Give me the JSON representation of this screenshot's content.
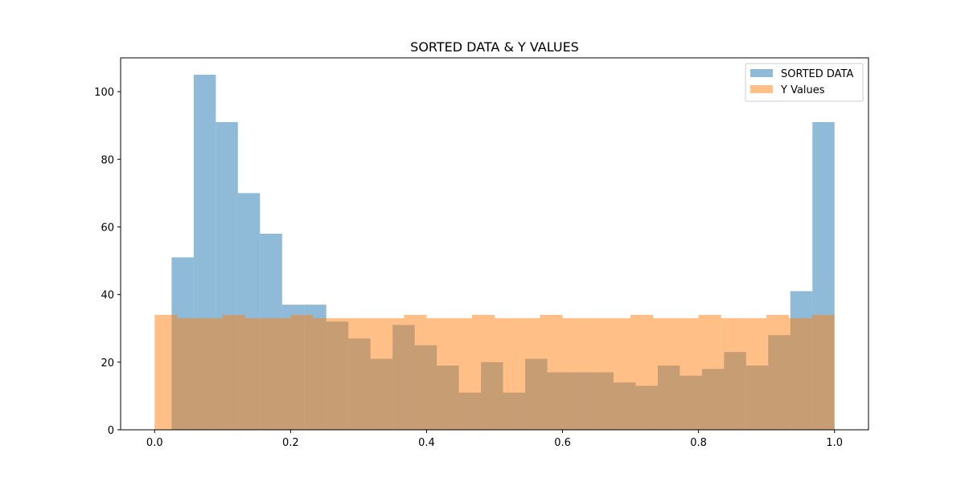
{
  "chart_data": {
    "type": "bar",
    "title": "SORTED DATA & Y VALUES",
    "xlabel": "",
    "ylabel": "",
    "xlim": [
      -0.05,
      1.05
    ],
    "ylim": [
      0,
      110
    ],
    "xticks": [
      0.0,
      0.2,
      0.4,
      0.6,
      0.8,
      1.0
    ],
    "xtick_labels": [
      "0.0",
      "0.2",
      "0.4",
      "0.6",
      "0.8",
      "1.0"
    ],
    "yticks": [
      0,
      20,
      40,
      60,
      80,
      100
    ],
    "ytick_labels": [
      "0",
      "20",
      "40",
      "60",
      "80",
      "100"
    ],
    "grid": false,
    "legend_position": "top-right",
    "series": [
      {
        "name": "SORTED DATA",
        "color": "#1f77b4",
        "alpha": 0.5,
        "bin_edges": [
          0.025,
          0.0575,
          0.09,
          0.1225,
          0.155,
          0.1875,
          0.22,
          0.2525,
          0.285,
          0.3175,
          0.35,
          0.3825,
          0.415,
          0.4475,
          0.48,
          0.5125,
          0.545,
          0.5775,
          0.61,
          0.6425,
          0.675,
          0.7075,
          0.74,
          0.7725,
          0.805,
          0.8375,
          0.87,
          0.9025,
          0.935,
          0.9675,
          1.0
        ],
        "counts": [
          51,
          105,
          91,
          70,
          58,
          37,
          37,
          32,
          27,
          21,
          31,
          25,
          19,
          11,
          20,
          11,
          21,
          17,
          17,
          17,
          14,
          13,
          19,
          16,
          18,
          23,
          19,
          28,
          41,
          91
        ]
      },
      {
        "name": "Y Values",
        "color": "#ff7f0e",
        "alpha": 0.5,
        "bin_edges": [
          0.0,
          0.0333,
          0.0667,
          0.1,
          0.1333,
          0.1667,
          0.2,
          0.2333,
          0.2667,
          0.3,
          0.3333,
          0.3667,
          0.4,
          0.4333,
          0.4667,
          0.5,
          0.5333,
          0.5667,
          0.6,
          0.6333,
          0.6667,
          0.7,
          0.7333,
          0.7667,
          0.8,
          0.8333,
          0.8667,
          0.9,
          0.9333,
          0.9667,
          1.0
        ],
        "counts": [
          34,
          33,
          33,
          34,
          33,
          33,
          34,
          33,
          33,
          33,
          33,
          34,
          33,
          33,
          34,
          33,
          33,
          34,
          33,
          33,
          33,
          34,
          33,
          33,
          34,
          33,
          33,
          34,
          33,
          34
        ]
      }
    ]
  }
}
